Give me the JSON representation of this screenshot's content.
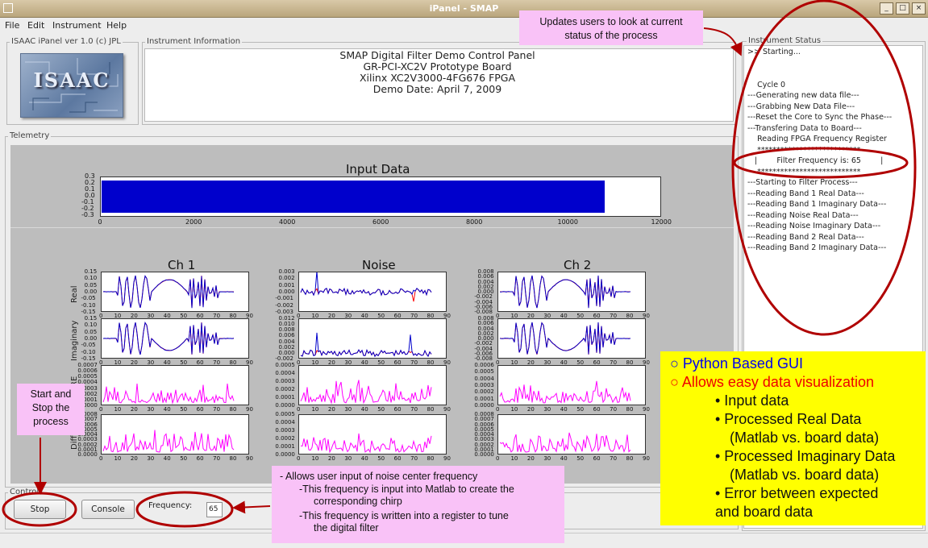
{
  "window": {
    "title": "iPanel - SMAP"
  },
  "menu": [
    "File",
    "Edit",
    "Instrument",
    "Help"
  ],
  "about_label": "ISAAC iPanel ver 1.0 (c) JPL",
  "logo_text": "ISAAC",
  "instrument_info": {
    "label": "Instrument Information",
    "lines": [
      "SMAP Digital Filter Demo Control Panel",
      "GR-PCI-XC2V Prototype Board",
      "Xilinx XC2V3000-4FG676 FPGA",
      "Demo Date: April 7, 2009"
    ]
  },
  "telemetry": {
    "label": "Telemetry",
    "input_title": "Input Data",
    "input_yticks": [
      "0.3",
      "0.2",
      "0.1",
      "0.0",
      "-0.1",
      "-0.2",
      "-0.3"
    ],
    "input_xticks": [
      "0",
      "2000",
      "4000",
      "6000",
      "8000",
      "10000",
      "12000"
    ],
    "col_titles": [
      "Ch 1",
      "Noise",
      "Ch 2"
    ],
    "row_labels": [
      "Real",
      "Imaginary",
      "RE",
      "Diff"
    ],
    "xticks": [
      "0",
      "10",
      "20",
      "30",
      "40",
      "50",
      "60",
      "70",
      "80",
      "90"
    ],
    "yticks": {
      "ch1_real": [
        "0.15",
        "0.10",
        "0.05",
        "0.00",
        "-0.05",
        "-0.10",
        "-0.15"
      ],
      "noise_real": [
        "0.003",
        "0.002",
        "0.001",
        "0.000",
        "-0.001",
        "-0.002",
        "-0.003"
      ],
      "ch2_real": [
        "0.008",
        "0.006",
        "0.004",
        "0.002",
        "0.000",
        "-0.002",
        "-0.004",
        "-0.006",
        "-0.008"
      ],
      "ch1_imag": [
        "0.15",
        "0.10",
        "0.05",
        "0.00",
        "-0.05",
        "-0.10",
        "-0.15"
      ],
      "noise_imag": [
        "0.012",
        "0.010",
        "0.008",
        "0.006",
        "0.004",
        "0.002",
        "0.000",
        "-0.002"
      ],
      "ch2_imag": [
        "0.008",
        "0.006",
        "0.004",
        "0.002",
        "0.000",
        "-0.002",
        "-0.004",
        "-0.006",
        "-0.008"
      ],
      "ch1_re": [
        "0.0007",
        "0.0006",
        "0.0005",
        "0.0004",
        "0.0003",
        "0.0002",
        "0.0001",
        "0.0000"
      ],
      "noise_re": [
        "0.0005",
        "0.0004",
        "0.0003",
        "0.0002",
        "0.0001",
        "0.0000"
      ],
      "ch2_re": [
        "0.0006",
        "0.0005",
        "0.0004",
        "0.0003",
        "0.0002",
        "0.0001",
        "0.0000"
      ],
      "ch1_diff": [
        "0.0008",
        "0.0007",
        "0.0006",
        "0.0005",
        "0.0004",
        "0.0003",
        "0.0002",
        "0.0001",
        "0.0000"
      ],
      "noise_diff": [
        "0.0005",
        "0.0004",
        "0.0003",
        "0.0002",
        "0.0001",
        "0.0000"
      ],
      "ch2_diff": [
        "0.0008",
        "0.0007",
        "0.0006",
        "0.0005",
        "0.0004",
        "0.0003",
        "0.0002",
        "0.0001",
        "0.0000"
      ]
    }
  },
  "controls": {
    "label": "Controls",
    "stop_label": "Stop",
    "console_label": "Console",
    "frequency_label": "Frequency:",
    "frequency_value": "65"
  },
  "status": {
    "label": "Instrument Status",
    "lines": [
      ">> Starting...",
      "",
      "",
      "    Cycle 0",
      "---Generating new data file---",
      "---Grabbing New Data File---",
      "---Reset the Core to Sync the Phase---",
      "---Transfering Data to Board---",
      "    Reading FPGA Frequency Register",
      "    ***************************",
      "   |        Filter Frequency is: 65        |",
      "    ***************************",
      "---Starting to Filter Process---",
      "---Reading Band 1 Real Data---",
      "---Reading Band 1 Imaginary Data---",
      "---Reading Noise Real Data---",
      "---Reading Noise Imaginary Data---",
      "---Reading Band 2 Real Data---",
      "---Reading Band 2 Imaginary Data---"
    ]
  },
  "annotations": {
    "status_callout": [
      "Updates users to look at current",
      "status of the process"
    ],
    "start_stop_callout": [
      "Start and",
      "Stop the",
      "process"
    ],
    "frequency_callout": [
      "- Allows user input of noise center frequency",
      "-This frequency is input into Matlab to create the",
      "corresponding chirp",
      "-This frequency is written into a register to tune",
      "the digital filter"
    ],
    "features": [
      {
        "text": "Python Based GUI",
        "color": "#0000ee",
        "bullet": "○"
      },
      {
        "text": "Allows easy data visualization",
        "color": "#ee0000",
        "bullet": "○"
      },
      {
        "text": "Input data",
        "bullet": "•"
      },
      {
        "text": "Processed Real Data",
        "bullet": "•"
      },
      {
        "text": "(Matlab vs. board data)",
        "bullet": ""
      },
      {
        "text": "Processed Imaginary Data",
        "bullet": "•"
      },
      {
        "text": "(Matlab vs. board data)",
        "bullet": ""
      },
      {
        "text": "Error between expected",
        "bullet": "•"
      },
      {
        "text": "and board data",
        "bullet": ""
      }
    ]
  },
  "colors": {
    "signal": "#0000cc",
    "matlab": "#ff0000",
    "error": "#ff00ff",
    "highlight": "#ffff00",
    "callout": "#f9c2f7",
    "annotation": "#b00000"
  }
}
